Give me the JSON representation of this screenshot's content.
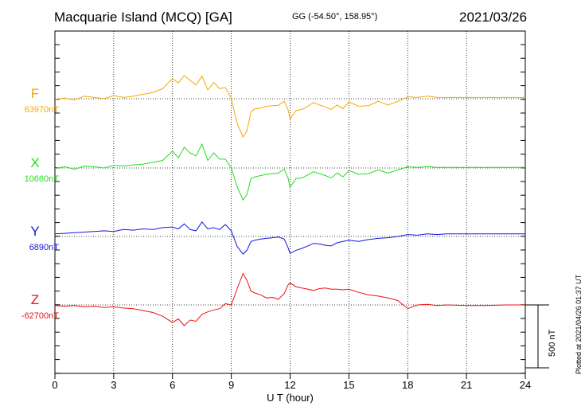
{
  "header": {
    "title": "Macquarie Island (MCQ)  [GA]",
    "coords": "GG (-54.50°, 158.95°)",
    "date": "2021/03/26"
  },
  "plot_stamp": "Plotted at 2021/04/26 01:37 UT",
  "scale_label": "500 nT",
  "chart_data": {
    "type": "line",
    "xlabel": "U T (hour)",
    "xlim": [
      0,
      24
    ],
    "xticks": [
      0,
      3,
      6,
      9,
      12,
      15,
      18,
      21,
      24
    ],
    "grid": true,
    "scale_bar_nT": 500,
    "series": [
      {
        "name": "F",
        "baseline_label": "63970nT",
        "color": "#f5a800",
        "x": [
          0,
          0.5,
          1,
          1.5,
          2,
          2.5,
          3,
          3.5,
          4,
          4.5,
          5,
          5.5,
          6,
          6.3,
          6.6,
          6.9,
          7.2,
          7.5,
          7.8,
          8.1,
          8.4,
          8.7,
          9,
          9.3,
          9.6,
          9.8,
          10,
          10.2,
          10.5,
          10.8,
          11.1,
          11.4,
          11.7,
          11.9,
          12,
          12.3,
          12.6,
          12.9,
          13.2,
          13.5,
          13.8,
          14.1,
          14.4,
          14.7,
          15,
          15.5,
          16,
          16.5,
          17,
          17.5,
          18,
          18.5,
          19,
          19.5,
          20,
          21,
          22,
          23,
          24
        ],
        "values": [
          -5,
          5,
          -10,
          20,
          10,
          0,
          25,
          10,
          20,
          35,
          50,
          80,
          160,
          125,
          185,
          145,
          110,
          180,
          70,
          130,
          80,
          90,
          0,
          -200,
          -305,
          -255,
          -105,
          -80,
          -75,
          -60,
          -55,
          -52,
          -20,
          -90,
          -160,
          -95,
          -85,
          -60,
          -30,
          -50,
          -65,
          -85,
          -50,
          -80,
          -25,
          -60,
          -55,
          -20,
          -50,
          -20,
          15,
          10,
          20,
          10,
          10,
          10,
          10,
          10,
          10
        ]
      },
      {
        "name": "X",
        "baseline_label": "10660nT",
        "color": "#22dd22",
        "x": [
          0,
          0.5,
          1,
          1.5,
          2,
          2.5,
          3,
          3.5,
          4,
          4.5,
          5,
          5.5,
          6,
          6.3,
          6.6,
          6.9,
          7.2,
          7.5,
          7.8,
          8.1,
          8.4,
          8.7,
          9,
          9.3,
          9.6,
          9.8,
          10,
          10.2,
          10.5,
          10.8,
          11.1,
          11.4,
          11.7,
          11.9,
          12,
          12.3,
          12.6,
          12.9,
          13.2,
          13.5,
          13.8,
          14.1,
          14.4,
          14.7,
          15,
          15.5,
          16,
          16.5,
          17,
          17.5,
          18,
          18.5,
          19,
          19.5,
          20,
          21,
          22,
          23,
          24
        ],
        "values": [
          -5,
          10,
          -10,
          15,
          10,
          0,
          20,
          15,
          25,
          30,
          45,
          60,
          135,
          80,
          165,
          120,
          95,
          190,
          60,
          120,
          70,
          70,
          0,
          -150,
          -255,
          -210,
          -85,
          -70,
          -60,
          -50,
          -45,
          -40,
          -10,
          -80,
          -155,
          -85,
          -80,
          -55,
          -30,
          -45,
          -60,
          -80,
          -40,
          -70,
          -20,
          -50,
          -45,
          -15,
          -40,
          -15,
          10,
          5,
          10,
          5,
          5,
          5,
          5,
          5,
          5
        ]
      },
      {
        "name": "Y",
        "baseline_label": "6890nT",
        "color": "#1515e0",
        "x": [
          0,
          0.5,
          1,
          1.5,
          2,
          2.5,
          3,
          3.5,
          4,
          4.5,
          5,
          5.5,
          6,
          6.3,
          6.6,
          6.9,
          7.2,
          7.5,
          7.8,
          8.1,
          8.4,
          8.7,
          9,
          9.3,
          9.6,
          9.8,
          10,
          10.2,
          10.5,
          10.8,
          11.1,
          11.4,
          11.7,
          11.9,
          12,
          12.3,
          12.6,
          12.9,
          13.2,
          13.5,
          13.8,
          14.1,
          14.4,
          14.7,
          15,
          15.5,
          16,
          16.5,
          17,
          17.5,
          18,
          18.5,
          19,
          19.5,
          20,
          21,
          22,
          23,
          24
        ],
        "values": [
          20,
          25,
          30,
          35,
          40,
          45,
          40,
          55,
          50,
          60,
          55,
          70,
          75,
          60,
          100,
          55,
          45,
          115,
          60,
          70,
          55,
          95,
          45,
          -80,
          -140,
          -110,
          -40,
          -30,
          -20,
          -15,
          -10,
          -5,
          -20,
          -90,
          -135,
          -110,
          -95,
          -75,
          -55,
          -60,
          -70,
          -75,
          -50,
          -40,
          -30,
          -40,
          -25,
          -15,
          -10,
          0,
          15,
          10,
          20,
          15,
          20,
          20,
          20,
          20,
          20
        ]
      },
      {
        "name": "Z",
        "baseline_label": "-62700nT",
        "color": "#ee1111",
        "x": [
          0,
          0.5,
          1,
          1.5,
          2,
          2.5,
          3,
          3.5,
          4,
          4.5,
          5,
          5.5,
          6,
          6.3,
          6.6,
          6.9,
          7.2,
          7.5,
          7.8,
          8.1,
          8.4,
          8.7,
          9,
          9.3,
          9.6,
          9.8,
          10,
          10.2,
          10.5,
          10.8,
          11.1,
          11.4,
          11.7,
          11.9,
          12,
          12.3,
          12.6,
          12.9,
          13.2,
          13.5,
          13.8,
          14.1,
          14.4,
          14.7,
          15,
          15.5,
          16,
          16.5,
          17,
          17.5,
          18,
          18.5,
          19,
          19.5,
          20,
          21,
          22,
          23,
          24
        ],
        "values": [
          -5,
          -10,
          -5,
          -15,
          -10,
          -20,
          -15,
          -25,
          -30,
          -45,
          -60,
          -90,
          -140,
          -110,
          -165,
          -120,
          -130,
          -75,
          -55,
          -40,
          -30,
          10,
          0,
          130,
          250,
          195,
          110,
          95,
          80,
          55,
          60,
          45,
          90,
          160,
          175,
          145,
          135,
          125,
          115,
          130,
          135,
          125,
          125,
          120,
          125,
          100,
          80,
          70,
          55,
          35,
          -30,
          0,
          5,
          -5,
          0,
          -5,
          -5,
          0,
          0
        ]
      }
    ]
  }
}
